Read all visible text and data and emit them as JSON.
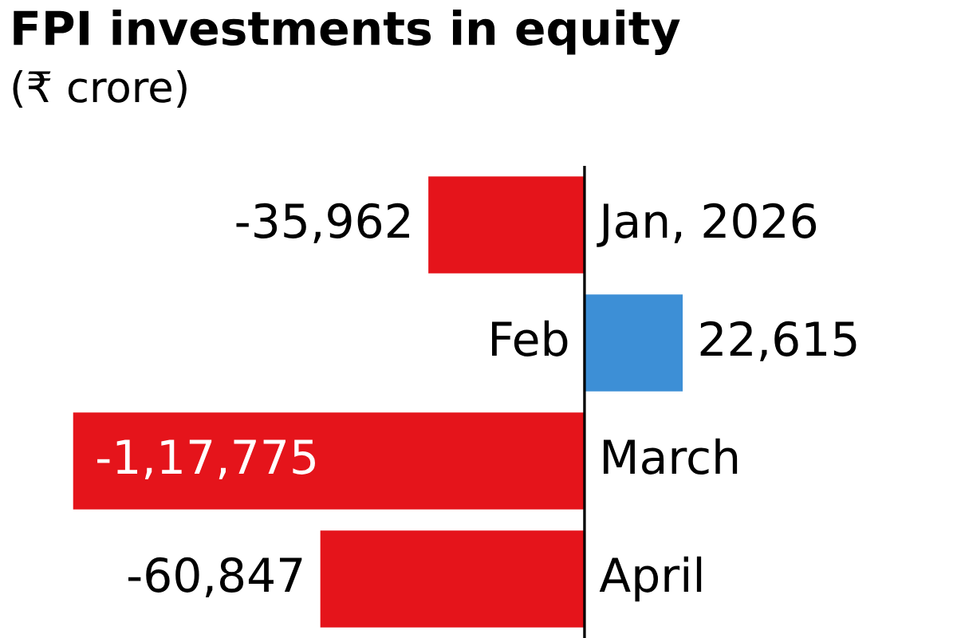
{
  "chart_data": {
    "type": "bar",
    "orientation": "horizontal",
    "title": "FPI investments in equity",
    "subtitle": "(₹ crore)",
    "categories": [
      "Jan, 2026",
      "Feb",
      "March",
      "April"
    ],
    "values": [
      -35962,
      22615,
      -117775,
      -60847
    ],
    "colors": [
      "#e5141b",
      "#3d8fd6",
      "#e5141b",
      "#e5141b"
    ],
    "value_labels": [
      "-35,962",
      "22,615",
      "-1,17,775",
      "-60,847"
    ],
    "data_labels": true
  }
}
